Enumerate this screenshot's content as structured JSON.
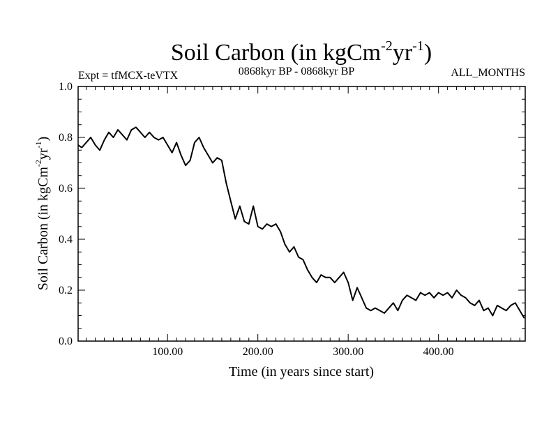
{
  "figure": {
    "title": {
      "main": "Soil Carbon (in kgCm",
      "sup1": "-2",
      "mid": "yr",
      "sup2": "-1",
      "end": ")"
    },
    "experiment": "Expt = tfMCX-teVTX",
    "period": "0868kyr BP - 0868kyr BP",
    "months": "ALL_MONTHS"
  },
  "chart_data": {
    "type": "line",
    "title": "Soil Carbon (in kgCm-2yr-1)",
    "xlabel": "Time (in years since start)",
    "ylabel": {
      "main": "Soil Carbon (in kgCm",
      "sup1": "-2",
      "mid": "yr",
      "sup2": "-1",
      "end": ")"
    },
    "xlim": [
      1,
      496
    ],
    "ylim": [
      0.0,
      1.0
    ],
    "xticks": [
      100,
      200,
      300,
      400
    ],
    "xtick_labels": [
      "100.00",
      "200.00",
      "300.00",
      "400.00"
    ],
    "yticks": [
      0.0,
      0.2,
      0.4,
      0.6,
      0.8,
      1.0
    ],
    "ytick_labels": [
      "0.0",
      "0.2",
      "0.4",
      "0.6",
      "0.8",
      "1.0"
    ],
    "grid": false,
    "color": "#000000",
    "series": [
      {
        "name": "Soil Carbon",
        "x": [
          1,
          5,
          10,
          15,
          20,
          25,
          30,
          35,
          40,
          45,
          50,
          55,
          60,
          65,
          70,
          75,
          80,
          85,
          90,
          95,
          100,
          105,
          110,
          115,
          120,
          125,
          130,
          135,
          140,
          145,
          150,
          155,
          160,
          165,
          170,
          175,
          180,
          185,
          190,
          195,
          200,
          205,
          210,
          215,
          220,
          225,
          230,
          235,
          240,
          245,
          250,
          255,
          260,
          265,
          270,
          275,
          280,
          285,
          290,
          295,
          300,
          305,
          310,
          315,
          320,
          325,
          330,
          335,
          340,
          345,
          350,
          355,
          360,
          365,
          370,
          375,
          380,
          385,
          390,
          395,
          400,
          405,
          410,
          415,
          420,
          425,
          430,
          435,
          440,
          445,
          450,
          455,
          460,
          465,
          470,
          475,
          480,
          485,
          490,
          495
        ],
        "values": [
          0.77,
          0.76,
          0.78,
          0.8,
          0.77,
          0.75,
          0.79,
          0.82,
          0.8,
          0.83,
          0.81,
          0.79,
          0.83,
          0.84,
          0.82,
          0.8,
          0.82,
          0.8,
          0.79,
          0.8,
          0.77,
          0.74,
          0.78,
          0.73,
          0.69,
          0.71,
          0.78,
          0.8,
          0.76,
          0.73,
          0.7,
          0.72,
          0.71,
          0.62,
          0.55,
          0.48,
          0.53,
          0.47,
          0.46,
          0.53,
          0.45,
          0.44,
          0.46,
          0.45,
          0.46,
          0.43,
          0.38,
          0.35,
          0.37,
          0.33,
          0.32,
          0.28,
          0.25,
          0.23,
          0.26,
          0.25,
          0.25,
          0.23,
          0.25,
          0.27,
          0.23,
          0.16,
          0.21,
          0.17,
          0.13,
          0.12,
          0.13,
          0.12,
          0.11,
          0.13,
          0.15,
          0.12,
          0.16,
          0.18,
          0.17,
          0.16,
          0.19,
          0.18,
          0.19,
          0.17,
          0.19,
          0.18,
          0.19,
          0.17,
          0.2,
          0.18,
          0.17,
          0.15,
          0.14,
          0.16,
          0.12,
          0.13,
          0.1,
          0.14,
          0.13,
          0.12,
          0.14,
          0.15,
          0.12,
          0.09
        ]
      }
    ]
  }
}
